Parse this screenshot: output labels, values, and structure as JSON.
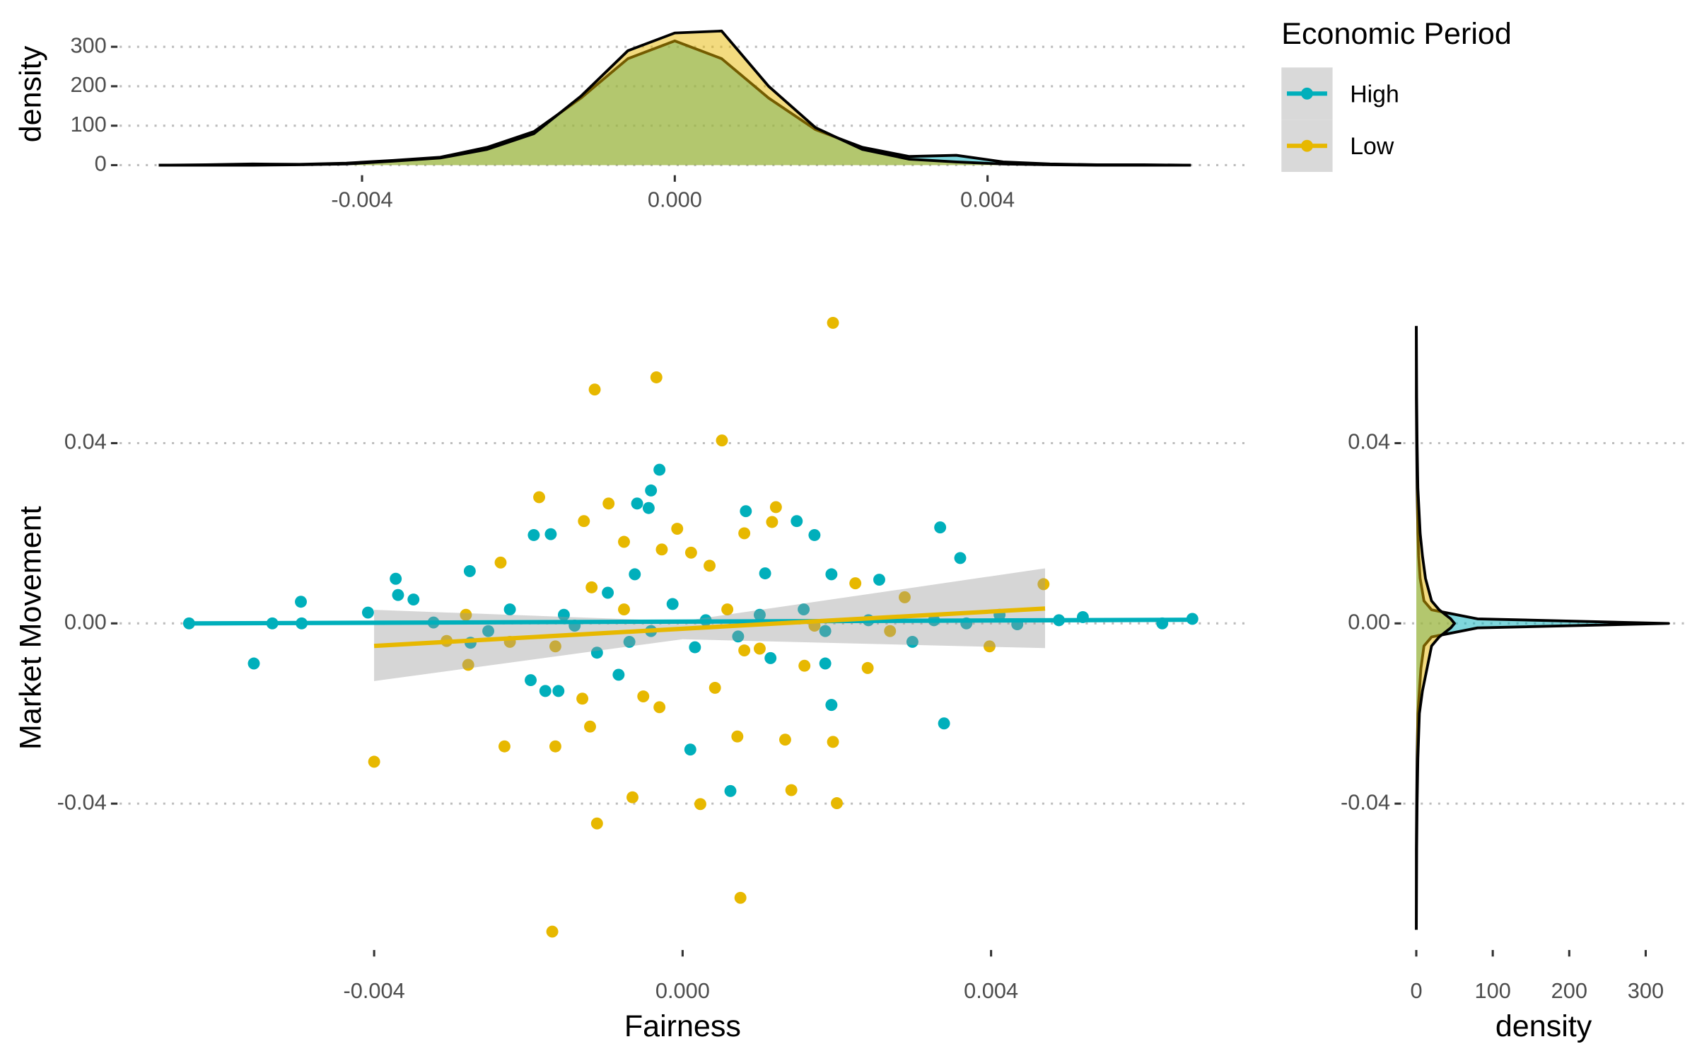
{
  "chart_data": [
    {
      "type": "area",
      "orientation": "vertical",
      "y_label": "density",
      "x": [
        -0.0066,
        -0.006,
        -0.0054,
        -0.0048,
        -0.0042,
        -0.0036,
        -0.003,
        -0.0024,
        -0.0018,
        -0.0012,
        -0.0006,
        0,
        0.0006,
        0.0012,
        0.0018,
        0.0024,
        0.003,
        0.0036,
        0.0042,
        0.0048,
        0.0054,
        0.006,
        0.0066
      ],
      "series": [
        {
          "name": "High",
          "color": "#00AFBB",
          "values": [
            0,
            1,
            3,
            2,
            5,
            12,
            20,
            45,
            85,
            170,
            270,
            315,
            270,
            170,
            90,
            45,
            22,
            25,
            8,
            3,
            1,
            1,
            0
          ]
        },
        {
          "name": "Low",
          "color": "#E7B800",
          "values": [
            0,
            0,
            0,
            1,
            3,
            10,
            18,
            40,
            80,
            175,
            290,
            335,
            340,
            200,
            95,
            40,
            15,
            8,
            3,
            1,
            0,
            0,
            0
          ]
        }
      ],
      "xlim": [
        -0.0071,
        0.0073
      ],
      "xticks": [
        -0.004,
        {
          "value": 0,
          "label": "0.000"
        },
        0.004
      ],
      "ylim": [
        -20,
        380
      ],
      "yticks": [
        0,
        100,
        200,
        300
      ],
      "grid": "y",
      "legend": {
        "title": "Economic Period",
        "position": "right"
      }
    },
    {
      "type": "scatter",
      "x_label": "Fairness",
      "y_label": "Market Movement",
      "series": [
        {
          "name": "High",
          "color": "#00AFBB",
          "x": [
            -0.0064,
            -0.00556,
            -0.00532,
            -0.00495,
            -0.00494,
            -0.00408,
            -0.00372,
            -0.00369,
            -0.00349,
            -0.00276,
            -0.00275,
            -0.00193,
            -0.00171,
            -0.00197,
            -0.00178,
            -0.00161,
            -0.0003,
            -0.00041,
            -0.00059,
            -0.00044,
            0.00082,
            0.00148,
            0.00171,
            0.00334,
            0.0036,
            0.0001,
            0.00062,
            0.00193,
            0.00339,
            0.00661,
            0.00622,
            0.00488,
            0.00519,
            0.00434,
            0.00298,
            0.00255,
            0.00193,
            0.00107,
            -0.00062,
            -0.00097,
            -0.00224,
            -0.00154,
            -0.00041,
            0.0003,
            0.001,
            0.00185,
            0.00241,
            -0.00252,
            -0.00323,
            -0.00111,
            -0.00013,
            0.00072,
            0.00157,
            -0.00083,
            0.00114,
            0.00185,
            -0.00069,
            -0.0014,
            0.00016,
            0.00326,
            0.00368,
            0.00411
          ],
          "y": [
            0,
            -0.0089,
            0,
            0.0048,
            0,
            0.0024,
            0.0099,
            0.0063,
            0.0053,
            0.0116,
            -0.0043,
            0.0196,
            0.0198,
            -0.0126,
            -0.015,
            -0.015,
            0.0341,
            0.0295,
            0.0266,
            0.0256,
            0.0249,
            0.0227,
            0.0196,
            0.0213,
            0.0145,
            -0.028,
            -0.0372,
            -0.0181,
            -0.0222,
            0.001,
            0,
            0.0007,
            0.0014,
            -0.0002,
            -0.0041,
            0.0097,
            0.0109,
            0.0111,
            0.0109,
            0.0068,
            0.0031,
            0.0019,
            -0.0017,
            0.0007,
            0.0019,
            -0.0017,
            0.0007,
            -0.0017,
            0.0002,
            -0.0065,
            0.0043,
            -0.0029,
            0.0031,
            -0.0114,
            -0.0077,
            -0.0089,
            -0.0041,
            -0.0005,
            -0.0053,
            0.0007,
            0,
            0.0019
          ],
          "fit_x": [
            -0.0064,
            0.0066
          ],
          "fit_y": [
            0,
            0.0008
          ]
        },
        {
          "name": "Low",
          "color": "#E7B800",
          "x": [
            0.00195,
            -0.00114,
            -0.00034,
            0.00051,
            -0.00186,
            0.00121,
            -0.00096,
            -0.00128,
            -0.00076,
            -0.00027,
            0.0008,
            0.00116,
            -7e-05,
            -0.00236,
            -0.004,
            -0.00231,
            -0.00165,
            -0.0012,
            -0.00111,
            -0.00065,
            0.00023,
            0.00141,
            0.002,
            0.00071,
            0.00133,
            0.00195,
            0.00075,
            -0.00169,
            0.00468,
            0.00398,
            0.0024,
            -0.00278,
            -0.00306,
            0.00288,
            0.00224,
            0.00035,
            0.00011,
            -0.00051,
            -0.0003,
            0.00042,
            0.0008,
            -0.0013,
            -0.00165,
            -0.00281,
            0.00158,
            0.001,
            -0.00076,
            0.00171,
            -0.00224,
            0.00269,
            -0.00118,
            0.00058
          ],
          "y": [
            0.0667,
            0.0519,
            0.0546,
            0.0406,
            0.028,
            0.0258,
            0.0266,
            0.0227,
            0.0181,
            0.0164,
            0.02,
            0.0225,
            0.021,
            0.0135,
            -0.0307,
            -0.0273,
            -0.0273,
            -0.0229,
            -0.0444,
            -0.0386,
            -0.0401,
            -0.037,
            -0.0399,
            -0.0251,
            -0.0258,
            -0.0263,
            -0.0609,
            -0.0684,
            0.0087,
            -0.0051,
            -0.0099,
            -0.0092,
            -0.0039,
            0.0058,
            0.0089,
            0.0128,
            0.0157,
            -0.0162,
            -0.0186,
            -0.0143,
            -0.006,
            -0.0167,
            -0.0051,
            0.0019,
            -0.0094,
            -0.0056,
            0.0031,
            -0.0005,
            -0.0041,
            -0.0017,
            0.008,
            0.0031
          ],
          "fit_x": [
            -0.004,
            0.0047
          ],
          "fit_y": [
            -0.005,
            0.0033
          ],
          "band_x": [
            -0.004,
            0,
            0.0047
          ],
          "band_lower": [
            -0.0128,
            -0.0035,
            -0.0055
          ],
          "band_upper": [
            0.003,
            0.0005,
            0.0122
          ]
        }
      ],
      "xlim": [
        -0.0073,
        0.0073
      ],
      "xticks": [
        -0.004,
        {
          "value": 0,
          "label": "0.000"
        },
        0.004
      ],
      "ylim": [
        -0.072,
        0.07
      ],
      "yticks": [
        -0.04,
        {
          "value": 0,
          "label": "0.00"
        },
        0.04
      ],
      "grid": "y"
    },
    {
      "type": "area",
      "orientation": "horizontal",
      "x_label": "density",
      "y": [
        -0.068,
        -0.05,
        -0.04,
        -0.03,
        -0.02,
        -0.015,
        -0.01,
        -0.005,
        -0.003,
        -0.001,
        0,
        0.001,
        0.003,
        0.005,
        0.01,
        0.015,
        0.02,
        0.03,
        0.04,
        0.05,
        0.066
      ],
      "series": [
        {
          "name": "High",
          "color": "#00AFBB",
          "values": [
            0,
            0,
            0.5,
            1,
            2,
            4,
            6,
            10,
            20,
            80,
            330,
            80,
            20,
            10,
            5,
            3,
            2,
            1,
            0.5,
            0,
            0
          ]
        },
        {
          "name": "Low",
          "color": "#E7B800",
          "values": [
            0,
            0.5,
            1,
            2,
            4,
            8,
            14,
            20,
            30,
            45,
            50,
            45,
            30,
            20,
            12,
            8,
            5,
            2,
            1,
            0.5,
            0
          ]
        }
      ],
      "xlim": [
        -17,
        350
      ],
      "xticks": [
        0,
        100,
        200,
        300
      ],
      "ylim": [
        -0.072,
        0.07
      ],
      "yticks": [
        -0.04,
        {
          "value": 0,
          "label": "0.00"
        },
        0.04
      ],
      "grid": "y"
    }
  ]
}
